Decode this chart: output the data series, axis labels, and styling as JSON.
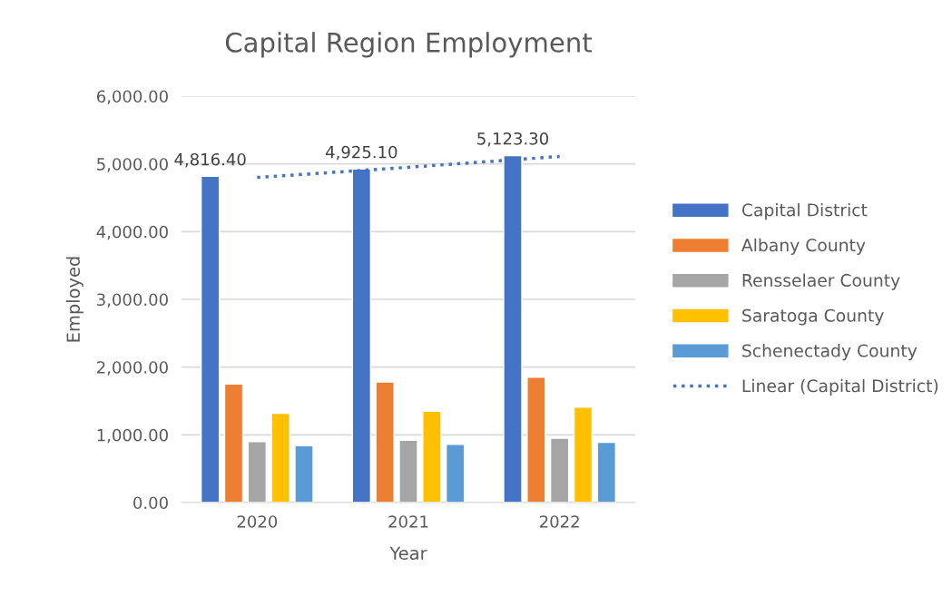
{
  "chart_data": {
    "type": "bar",
    "title": "Capital Region Employment",
    "xlabel": "Year",
    "ylabel": "Employed",
    "categories": [
      "2020",
      "2021",
      "2022"
    ],
    "series": [
      {
        "name": "Capital District",
        "color": "#4472c4",
        "values": [
          4816.4,
          4925.1,
          5123.3
        ],
        "value_labels": [
          "4,816.40",
          "4,925.10",
          "5,123.30"
        ]
      },
      {
        "name": "Albany County",
        "color": "#ed7d31",
        "values": [
          1750,
          1780,
          1850
        ]
      },
      {
        "name": "Rensselaer County",
        "color": "#a5a5a5",
        "values": [
          900,
          920,
          950
        ]
      },
      {
        "name": "Saratoga County",
        "color": "#ffc000",
        "values": [
          1320,
          1350,
          1410
        ]
      },
      {
        "name": "Schenectady County",
        "color": "#5b9bd5",
        "values": [
          840,
          860,
          890
        ]
      },
      {
        "name": "Linear (Capital District)",
        "type": "line",
        "color": "#4472c4",
        "line_style": "dotted",
        "marker": "none",
        "values": [
          4800,
          4950,
          5110
        ]
      }
    ],
    "ylim": [
      0,
      6000
    ],
    "yticks": [
      {
        "value": 0,
        "label": "0.00"
      },
      {
        "value": 1000,
        "label": "1,000.00"
      },
      {
        "value": 2000,
        "label": "2,000.00"
      },
      {
        "value": 3000,
        "label": "3,000.00"
      },
      {
        "value": 4000,
        "label": "4,000.00"
      },
      {
        "value": 5000,
        "label": "5,000.00"
      },
      {
        "value": 6000,
        "label": "6,000.00"
      }
    ],
    "grid": "y",
    "legend": "right"
  }
}
